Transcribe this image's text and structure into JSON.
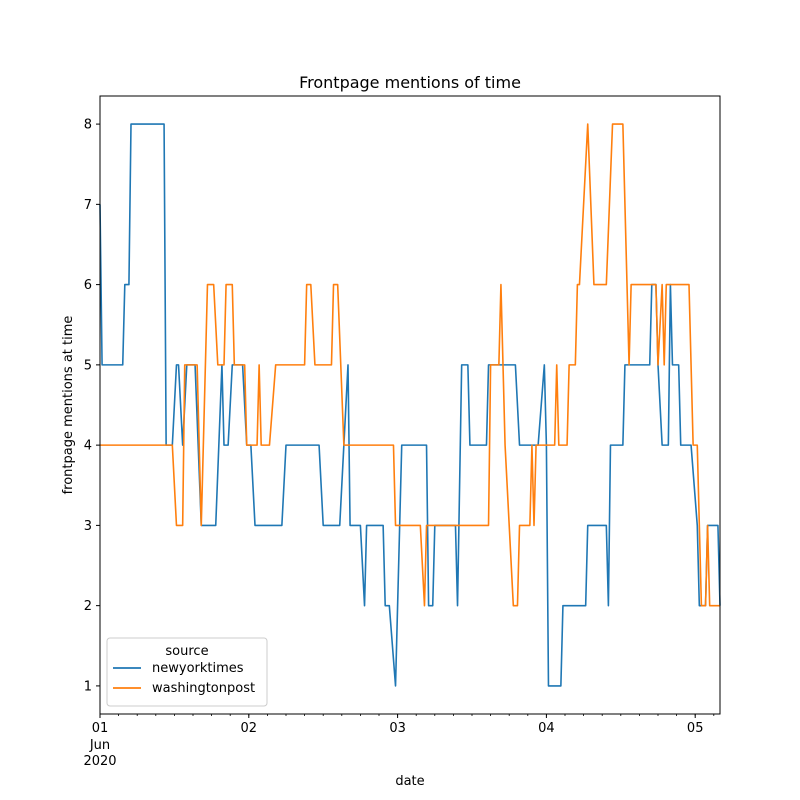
{
  "chart_data": {
    "type": "line",
    "title": "Frontpage mentions of time",
    "xlabel": "date",
    "ylabel": "frontpage mentions at time",
    "legend": {
      "title": "source",
      "placement": "lower-left"
    },
    "grid": false,
    "x_range": [
      "2020-06-01T00:00",
      "2020-06-05T04:00"
    ],
    "ylim": [
      0.65,
      8.35
    ],
    "y_ticks": [
      1,
      2,
      3,
      4,
      5,
      6,
      7,
      8
    ],
    "x_ticks": [
      {
        "at": "2020-06-01T00:00",
        "label": "01",
        "sublabels": [
          "Jun",
          "2020"
        ]
      },
      {
        "at": "2020-06-02T00:00",
        "label": "02",
        "sublabels": []
      },
      {
        "at": "2020-06-03T00:00",
        "label": "03",
        "sublabels": []
      },
      {
        "at": "2020-06-04T00:00",
        "label": "04",
        "sublabels": []
      },
      {
        "at": "2020-06-05T00:00",
        "label": "05",
        "sublabels": []
      }
    ],
    "series": [
      {
        "name": "newyorktimes",
        "color": "#1f77b4",
        "points": [
          [
            "2020-06-01T00:00",
            7
          ],
          [
            "2020-06-01T00:20",
            5
          ],
          [
            "2020-06-01T03:40",
            5
          ],
          [
            "2020-06-01T04:00",
            6
          ],
          [
            "2020-06-01T04:40",
            6
          ],
          [
            "2020-06-01T05:00",
            8
          ],
          [
            "2020-06-01T10:20",
            8
          ],
          [
            "2020-06-01T10:40",
            4
          ],
          [
            "2020-06-01T11:40",
            4
          ],
          [
            "2020-06-01T12:20",
            5
          ],
          [
            "2020-06-01T12:40",
            5
          ],
          [
            "2020-06-01T13:20",
            4
          ],
          [
            "2020-06-01T14:00",
            5
          ],
          [
            "2020-06-01T15:20",
            5
          ],
          [
            "2020-06-01T16:20",
            3
          ],
          [
            "2020-06-01T18:40",
            3
          ],
          [
            "2020-06-01T19:40",
            5
          ],
          [
            "2020-06-01T20:00",
            4
          ],
          [
            "2020-06-01T20:40",
            4
          ],
          [
            "2020-06-01T21:20",
            5
          ],
          [
            "2020-06-01T23:00",
            5
          ],
          [
            "2020-06-01T23:40",
            4
          ],
          [
            "2020-06-02T00:20",
            4
          ],
          [
            "2020-06-02T01:00",
            3
          ],
          [
            "2020-06-02T05:20",
            3
          ],
          [
            "2020-06-02T06:00",
            4
          ],
          [
            "2020-06-02T11:20",
            4
          ],
          [
            "2020-06-02T12:00",
            3
          ],
          [
            "2020-06-02T14:40",
            3
          ],
          [
            "2020-06-02T16:00",
            5
          ],
          [
            "2020-06-02T16:20",
            3
          ],
          [
            "2020-06-02T18:00",
            3
          ],
          [
            "2020-06-02T18:40",
            2
          ],
          [
            "2020-06-02T19:00",
            3
          ],
          [
            "2020-06-02T21:40",
            3
          ],
          [
            "2020-06-02T22:00",
            2
          ],
          [
            "2020-06-02T22:40",
            2
          ],
          [
            "2020-06-02T23:40",
            1
          ],
          [
            "2020-06-03T00:20",
            3
          ],
          [
            "2020-06-03T00:40",
            4
          ],
          [
            "2020-06-03T04:40",
            4
          ],
          [
            "2020-06-03T05:00",
            2
          ],
          [
            "2020-06-03T05:40",
            2
          ],
          [
            "2020-06-03T06:00",
            3
          ],
          [
            "2020-06-03T09:20",
            3
          ],
          [
            "2020-06-03T09:40",
            2
          ],
          [
            "2020-06-03T10:20",
            5
          ],
          [
            "2020-06-03T11:20",
            5
          ],
          [
            "2020-06-03T11:40",
            4
          ],
          [
            "2020-06-03T14:20",
            4
          ],
          [
            "2020-06-03T14:40",
            5
          ],
          [
            "2020-06-03T19:00",
            5
          ],
          [
            "2020-06-03T19:40",
            4
          ],
          [
            "2020-06-03T22:40",
            4
          ],
          [
            "2020-06-03T23:40",
            5
          ],
          [
            "2020-06-04T00:00",
            4
          ],
          [
            "2020-06-04T00:20",
            1
          ],
          [
            "2020-06-04T02:20",
            1
          ],
          [
            "2020-06-04T02:40",
            2
          ],
          [
            "2020-06-04T06:20",
            2
          ],
          [
            "2020-06-04T06:40",
            3
          ],
          [
            "2020-06-04T09:40",
            3
          ],
          [
            "2020-06-04T10:00",
            2
          ],
          [
            "2020-06-04T10:20",
            4
          ],
          [
            "2020-06-04T12:20",
            4
          ],
          [
            "2020-06-04T12:40",
            5
          ],
          [
            "2020-06-04T16:40",
            5
          ],
          [
            "2020-06-04T17:00",
            6
          ],
          [
            "2020-06-04T17:40",
            6
          ],
          [
            "2020-06-04T18:00",
            5
          ],
          [
            "2020-06-04T18:40",
            4
          ],
          [
            "2020-06-04T19:40",
            4
          ],
          [
            "2020-06-04T20:00",
            6
          ],
          [
            "2020-06-04T20:20",
            5
          ],
          [
            "2020-06-04T21:20",
            5
          ],
          [
            "2020-06-04T21:40",
            4
          ],
          [
            "2020-06-04T23:20",
            4
          ],
          [
            "2020-06-05T00:20",
            3
          ],
          [
            "2020-06-05T00:40",
            2
          ],
          [
            "2020-06-05T01:40",
            2
          ],
          [
            "2020-06-05T02:00",
            3
          ],
          [
            "2020-06-05T03:40",
            3
          ],
          [
            "2020-06-05T04:00",
            2
          ]
        ]
      },
      {
        "name": "washingtonpost",
        "color": "#ff7f0e",
        "points": [
          [
            "2020-06-01T00:00",
            4
          ],
          [
            "2020-06-01T11:40",
            4
          ],
          [
            "2020-06-01T12:20",
            3
          ],
          [
            "2020-06-01T13:20",
            3
          ],
          [
            "2020-06-01T13:40",
            5
          ],
          [
            "2020-06-01T15:40",
            5
          ],
          [
            "2020-06-01T16:20",
            3
          ],
          [
            "2020-06-01T17:00",
            5
          ],
          [
            "2020-06-01T17:20",
            6
          ],
          [
            "2020-06-01T18:20",
            6
          ],
          [
            "2020-06-01T19:00",
            5
          ],
          [
            "2020-06-01T20:00",
            5
          ],
          [
            "2020-06-01T20:20",
            6
          ],
          [
            "2020-06-01T21:20",
            6
          ],
          [
            "2020-06-01T21:40",
            5
          ],
          [
            "2020-06-01T23:20",
            5
          ],
          [
            "2020-06-01T23:40",
            4
          ],
          [
            "2020-06-02T01:20",
            4
          ],
          [
            "2020-06-02T01:40",
            5
          ],
          [
            "2020-06-02T02:00",
            4
          ],
          [
            "2020-06-02T03:20",
            4
          ],
          [
            "2020-06-02T04:20",
            5
          ],
          [
            "2020-06-02T09:00",
            5
          ],
          [
            "2020-06-02T09:20",
            6
          ],
          [
            "2020-06-02T10:00",
            6
          ],
          [
            "2020-06-02T10:40",
            5
          ],
          [
            "2020-06-02T13:20",
            5
          ],
          [
            "2020-06-02T13:40",
            6
          ],
          [
            "2020-06-02T14:20",
            6
          ],
          [
            "2020-06-02T15:20",
            4
          ],
          [
            "2020-06-02T23:20",
            4
          ],
          [
            "2020-06-02T23:40",
            3
          ],
          [
            "2020-06-03T03:40",
            3
          ],
          [
            "2020-06-03T04:20",
            2
          ],
          [
            "2020-06-03T04:40",
            3
          ],
          [
            "2020-06-03T14:40",
            3
          ],
          [
            "2020-06-03T15:00",
            5
          ],
          [
            "2020-06-03T16:20",
            5
          ],
          [
            "2020-06-03T16:40",
            6
          ],
          [
            "2020-06-03T17:20",
            4
          ],
          [
            "2020-06-03T18:40",
            2
          ],
          [
            "2020-06-03T19:20",
            2
          ],
          [
            "2020-06-03T19:40",
            3
          ],
          [
            "2020-06-03T21:20",
            3
          ],
          [
            "2020-06-03T21:40",
            4
          ],
          [
            "2020-06-03T22:00",
            3
          ],
          [
            "2020-06-03T22:20",
            4
          ],
          [
            "2020-06-04T00:20",
            4
          ],
          [
            "2020-06-04T01:20",
            4
          ],
          [
            "2020-06-04T01:40",
            5
          ],
          [
            "2020-06-04T02:00",
            4
          ],
          [
            "2020-06-04T03:20",
            4
          ],
          [
            "2020-06-04T03:40",
            5
          ],
          [
            "2020-06-04T04:40",
            5
          ],
          [
            "2020-06-04T05:00",
            6
          ],
          [
            "2020-06-04T05:20",
            6
          ],
          [
            "2020-06-04T06:40",
            8
          ],
          [
            "2020-06-04T07:40",
            6
          ],
          [
            "2020-06-04T09:40",
            6
          ],
          [
            "2020-06-04T10:40",
            8
          ],
          [
            "2020-06-04T12:20",
            8
          ],
          [
            "2020-06-04T13:20",
            5
          ],
          [
            "2020-06-04T13:40",
            6
          ],
          [
            "2020-06-04T17:40",
            6
          ],
          [
            "2020-06-04T18:00",
            5
          ],
          [
            "2020-06-04T18:40",
            6
          ],
          [
            "2020-06-04T19:00",
            5
          ],
          [
            "2020-06-04T19:20",
            6
          ],
          [
            "2020-06-04T23:00",
            6
          ],
          [
            "2020-06-04T23:20",
            5
          ],
          [
            "2020-06-04T23:40",
            4
          ],
          [
            "2020-06-05T00:20",
            4
          ],
          [
            "2020-06-05T00:40",
            3
          ],
          [
            "2020-06-05T01:00",
            2
          ],
          [
            "2020-06-05T01:40",
            2
          ],
          [
            "2020-06-05T02:00",
            3
          ],
          [
            "2020-06-05T02:20",
            2
          ],
          [
            "2020-06-05T04:00",
            2
          ]
        ]
      }
    ]
  }
}
